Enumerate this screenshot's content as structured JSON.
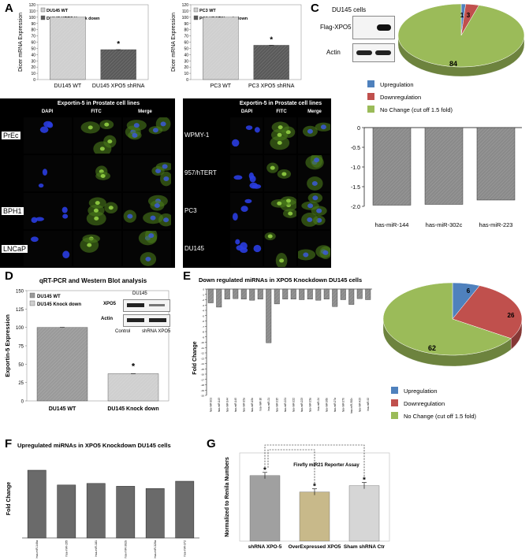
{
  "panels": {
    "A": "A",
    "B": "B",
    "C": "C",
    "D": "D",
    "E": "E",
    "F": "F",
    "G": "G"
  },
  "chart_data": [
    {
      "id": "A-left",
      "type": "bar",
      "legend": [
        "DU145 WT",
        "DU145 XPO5 Knock down"
      ],
      "categories": [
        "DU145 WT",
        "DU145 XPO5 shRNA"
      ],
      "values": [
        100,
        48
      ],
      "ylabel": "Dicer mRNA Expression",
      "ylim": [
        0,
        120
      ],
      "yticks": [
        "0",
        "10",
        "20",
        "30",
        "40",
        "50",
        "60",
        "70",
        "80",
        "90",
        "100",
        "110",
        "120"
      ],
      "annotation": "*",
      "colors": [
        "#cfcfcf",
        "#5a5a5a"
      ]
    },
    {
      "id": "A-right",
      "type": "bar",
      "legend": [
        "PC3 WT",
        "PC3 XPO5 Knock down"
      ],
      "categories": [
        "PC3 WT",
        "PC3 XPO5 shRNA"
      ],
      "values": [
        100,
        55
      ],
      "ylabel": "Dicer mRNA Expression",
      "ylim": [
        0,
        120
      ],
      "yticks": [
        "0",
        "10",
        "20",
        "30",
        "40",
        "50",
        "60",
        "70",
        "80",
        "90",
        "100",
        "110",
        "120"
      ],
      "annotation": "*",
      "colors": [
        "#cfcfcf",
        "#5a5a5a"
      ]
    },
    {
      "id": "C-pie",
      "type": "pie",
      "values": [
        1,
        3,
        84
      ],
      "labels": [
        "1",
        "3",
        "84"
      ],
      "legend": [
        "Upregulation",
        "Downregulation",
        "No Change (cut off 1.5 fold)"
      ],
      "colors": [
        "#4f81bd",
        "#c0504d",
        "#9bbb59"
      ]
    },
    {
      "id": "C-bar",
      "type": "bar",
      "categories": [
        "has-miR-144",
        "has-miR-302c",
        "has-miR-223"
      ],
      "values": [
        -1.97,
        -1.95,
        -1.84
      ],
      "ylim": [
        -2.0,
        0
      ],
      "yticks": [
        "0",
        "-0.5",
        "-1.0",
        "-1.5",
        "-2.0"
      ]
    },
    {
      "id": "D",
      "type": "bar",
      "title": "qRT-PCR and Western Blot analysis",
      "legend": [
        "DU145 WT",
        "DU145 Knock down"
      ],
      "categories": [
        "DU145 WT",
        "DU145 Knock down"
      ],
      "values": [
        100,
        37
      ],
      "ylabel": "Exportin-5 Expression",
      "ylim": [
        0,
        150
      ],
      "yticks": [
        "0",
        "25",
        "50",
        "75",
        "100",
        "125",
        "150"
      ],
      "annotation": "*",
      "colors": [
        "#9a9a9a",
        "#cfcfcf"
      ]
    },
    {
      "id": "E-bar",
      "type": "bar",
      "title": "Down regulated miRNAs in XPO5 Knockdown DU145 cells",
      "ylabel": "Fold Change",
      "categories": [
        "hsa-miR-101",
        "hsa-miR-143",
        "hsa-miR-144",
        "hsa-miR-145",
        "hsa-miR-15a",
        "hsa-miR-15b",
        "hsa-miR-16",
        "hsa-miR-21",
        "hsa-miR-215",
        "hsa-miR-221",
        "hsa-miR-222",
        "hsa-miR-223",
        "hsa-miR-23a",
        "hsa-miR-24",
        "hsa-miR-26b",
        "hsa-miR-27a",
        "hsa-miR-27b",
        "hsa-miR-302c",
        "hsa-miR-423",
        "hsa-miR-92"
      ],
      "values": [
        -2.6,
        -3.4,
        -1.9,
        -1.8,
        -1.9,
        -2.1,
        -1.9,
        -10.1,
        -2.8,
        -1.9,
        -1.9,
        -2.0,
        -1.9,
        -2.1,
        -1.9,
        -3.3,
        -2.0,
        -2.9,
        -1.8,
        -2.0
      ],
      "ylim": [
        -20,
        0
      ],
      "yticks": [
        "0",
        "-1",
        "-2",
        "-3",
        "-4",
        "-5",
        "-6",
        "-7",
        "-8",
        "-9",
        "-10",
        "-11",
        "-12",
        "-13",
        "-14",
        "-15",
        "-16",
        "-17",
        "-18",
        "-19",
        "-20"
      ]
    },
    {
      "id": "E-pie",
      "type": "pie",
      "values": [
        6,
        26,
        62
      ],
      "labels": [
        "6",
        "26",
        "62"
      ],
      "legend": [
        "Upregulation",
        "Downregulation",
        "No Change (cut off 1.5 fold)"
      ],
      "colors": [
        "#4f81bd",
        "#c0504d",
        "#9bbb59"
      ]
    },
    {
      "id": "F",
      "type": "bar",
      "title": "Upregulated miRNAs in XPO5 Knockdown DU145 cells",
      "ylabel": "Fold Change",
      "categories": [
        "hsa-miR-146a",
        "hsa-miR-155",
        "hsa-miR-181",
        "hsa-miR-302b",
        "hsa-miR-320a",
        "hsa-miR-372"
      ],
      "values": [
        2.15,
        1.68,
        1.73,
        1.64,
        1.57,
        1.8
      ],
      "ylim": [
        0,
        2.5
      ]
    },
    {
      "id": "G",
      "type": "bar",
      "title": "Firefly miR21 Reporter Assay",
      "ylabel": "Normalized to Renila Numbers",
      "categories": [
        "shRNA XPO-5",
        "OverExpressed XPO5",
        "Sham shRNA Ctr"
      ],
      "values": [
        26,
        19.5,
        22
      ],
      "ylim": [
        0,
        35
      ],
      "annotation": "*",
      "colors": [
        "#a0a0a0",
        "#c8b98a",
        "#d6d6d6"
      ]
    }
  ],
  "westernC": {
    "title": "DU145 cells",
    "rows": [
      "Flag-XPO5",
      "Actin"
    ]
  },
  "westernD": {
    "title": "DU145",
    "rows": [
      "XPO5",
      "Actin"
    ],
    "lanes": [
      "Control",
      "shRNA XPO5"
    ]
  },
  "microscopy": {
    "left_title": "Exportin-5 in Prostate cell lines",
    "right_title": "Exportin-5 in Prostate cell lines",
    "columns": [
      "DAPI",
      "FITC",
      "Merge"
    ],
    "left_rows": [
      "PrEc",
      "",
      "BPH1",
      "LNCaP"
    ],
    "right_rows": [
      "WPMY-1",
      "957/hTERT",
      "PC3",
      "DU145"
    ]
  },
  "colors": {
    "up": "#4f81bd",
    "down": "#c0504d",
    "nochange": "#9bbb59",
    "pie_side": "#6f8f3f"
  }
}
